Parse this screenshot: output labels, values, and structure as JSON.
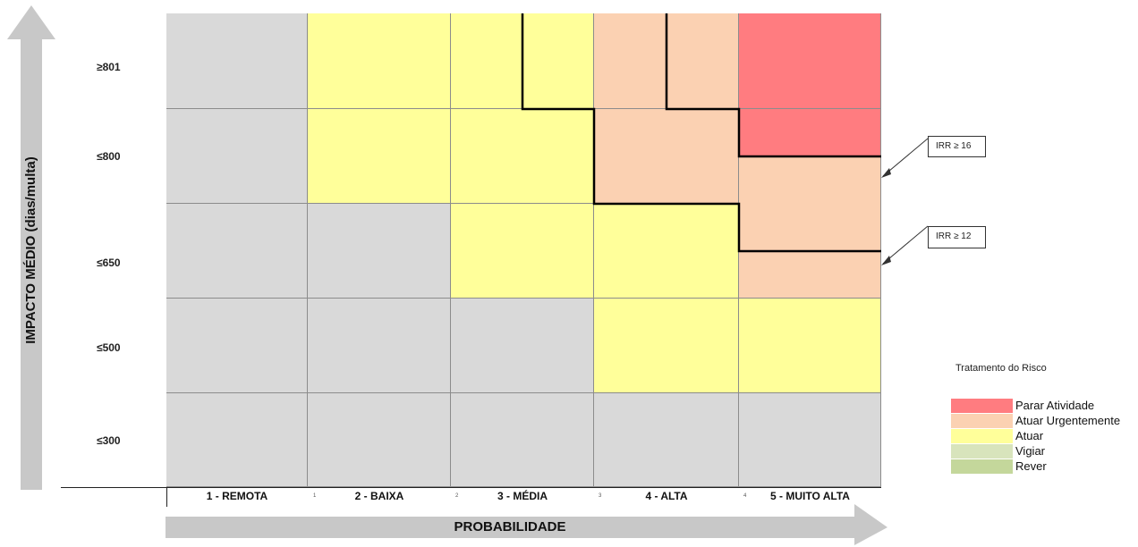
{
  "axes": {
    "y_title": "IMPACTO MÉDIO (dias/multa)",
    "x_title": "PROBABILIDADE",
    "y_levels": [
      "≥801",
      "≤800",
      "≤650",
      "≤500",
      "≤300"
    ],
    "x_levels": [
      "1 - REMOTA",
      "2 - BAIXA",
      "3 - MÉDIA",
      "4 - ALTA",
      "5 - MUITO ALTA"
    ],
    "x_small_numbers": [
      "1",
      "2",
      "3",
      "4"
    ]
  },
  "matrix": {
    "rows": [
      [
        "Vigiar",
        "Atuar",
        "Atuar",
        "Atuar Urgentemente",
        "Parar Atividade"
      ],
      [
        "Vigiar",
        "Atuar",
        "Atuar",
        "Atuar Urgentemente",
        "Parar Atividade"
      ],
      [
        "Vigiar",
        "Vigiar",
        "Atuar",
        "Atuar",
        "Atuar Urgentemente"
      ],
      [
        "Vigiar",
        "Vigiar",
        "Vigiar",
        "Atuar",
        "Atuar"
      ],
      [
        "Vigiar",
        "Vigiar",
        "Vigiar",
        "Vigiar",
        "Vigiar"
      ]
    ]
  },
  "callouts": {
    "irr16": "IRR ≥ 16",
    "irr12": "IRR ≥ 12"
  },
  "legend": {
    "title": "Tratamento do Risco",
    "items": [
      {
        "label": "Parar Atividade",
        "color": "#ff7c80"
      },
      {
        "label": "Atuar Urgentemente",
        "color": "#fbd1b2"
      },
      {
        "label": "Atuar",
        "color": "#ffff9a"
      },
      {
        "label": "Vigiar",
        "color": "#d8e4bc"
      },
      {
        "label": "Rever",
        "color": "#c4d79b"
      }
    ]
  },
  "colors": {
    "grey_cell": "#d9d9d9",
    "yellow_cell": "#ffff9a",
    "peach_cell": "#fbd1b2",
    "red_cell": "#ff7c80",
    "arrow_grey": "#c8c8c8"
  }
}
